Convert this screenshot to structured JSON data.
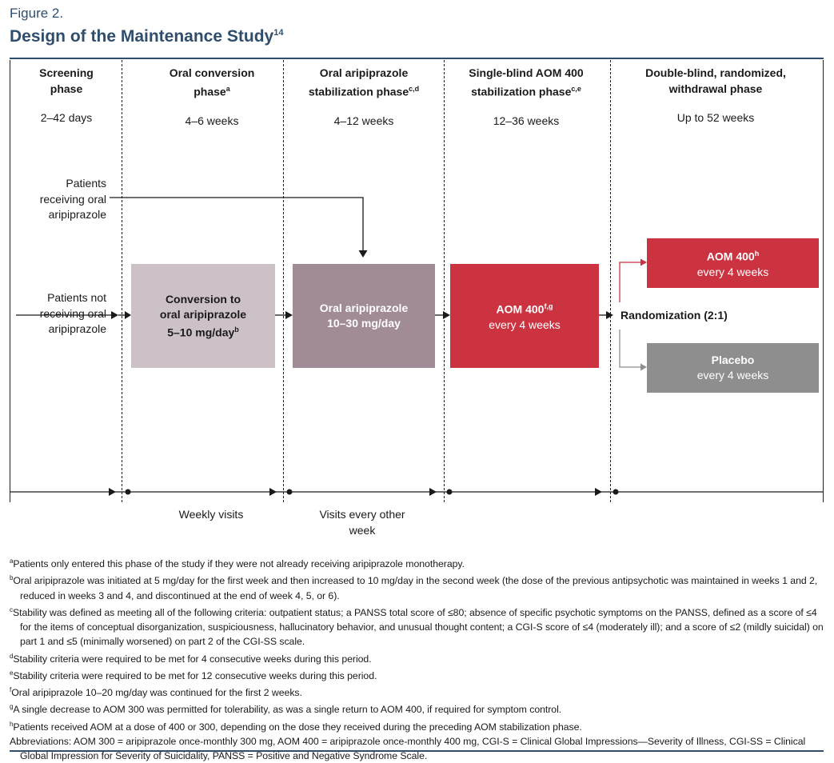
{
  "figure": {
    "label": "Figure 2.",
    "title": "Design of the Maintenance Study",
    "title_ref": "14"
  },
  "phases": [
    {
      "title": "Screening phase",
      "sup": "",
      "duration": "2–42 days"
    },
    {
      "title": "Oral conversion phase",
      "sup": "a",
      "duration": "4–6 weeks"
    },
    {
      "title": "Oral aripiprazole stabilization phase",
      "sup": "c,d",
      "duration": "4–12 weeks"
    },
    {
      "title": "Single-blind AOM 400 stabilization phase",
      "sup": "c,e",
      "duration": "12–36 weeks"
    },
    {
      "title": "Double-blind, randomized, withdrawal phase",
      "sup": "",
      "duration": "Up to 52 weeks"
    }
  ],
  "patients": {
    "receiving": "Patients receiving oral aripiprazole",
    "not_receiving": "Patients not receiving oral aripiprazole"
  },
  "boxes": {
    "conversion": {
      "line1": "Conversion to",
      "line2": "oral aripiprazole",
      "line3": "5–10 mg/day",
      "sup": "b"
    },
    "oral_stab": {
      "line1": "Oral aripiprazole",
      "line2": "10–30 mg/day"
    },
    "aom_stab": {
      "line1": "AOM 400",
      "sup": "f,g",
      "line2": "every 4 weeks"
    },
    "aom_rand": {
      "line1": "AOM 400",
      "sup": "h",
      "line2": "every 4 weeks"
    },
    "placebo": {
      "line1": "Placebo",
      "line2": "every 4 weeks"
    }
  },
  "randomization": "Randomization (2:1)",
  "visits": {
    "weekly": "Weekly visits",
    "other": "Visits every other week"
  },
  "footnotes": [
    {
      "mark": "a",
      "text": "Patients only entered this phase of the study if they were not already receiving aripiprazole monotherapy."
    },
    {
      "mark": "b",
      "text": "Oral aripiprazole was initiated at 5 mg/day for the first week and then increased to 10 mg/day in the second week (the dose of the previous antipsychotic was maintained in weeks 1 and 2, reduced in weeks 3 and 4, and discontinued at the end of week 4, 5, or 6)."
    },
    {
      "mark": "c",
      "text": "Stability was defined as meeting all of the following criteria: outpatient status; a PANSS total score of ≤80; absence of specific psychotic symptoms on the PANSS, defined as a score of ≤4 for the items of conceptual disorganization, suspiciousness, hallucinatory behavior, and unusual thought content; a CGI-S score of ≤4 (moderately ill); and a score of ≤2 (mildly suicidal) on part 1 and ≤5 (minimally worsened) on part 2 of the CGI-SS scale."
    },
    {
      "mark": "d",
      "text": "Stability criteria were required to be met for 4 consecutive weeks during this period."
    },
    {
      "mark": "e",
      "text": "Stability criteria were required to be met for 12 consecutive weeks during this period."
    },
    {
      "mark": "f",
      "text": "Oral aripiprazole 10–20 mg/day was continued for the first 2 weeks."
    },
    {
      "mark": "g",
      "text": "A single decrease to AOM 300 was permitted for tolerability, as was a single return to AOM 400, if required for symptom control."
    },
    {
      "mark": "h",
      "text": "Patients received AOM at a dose of 400 or 300, depending on the dose they received during the preceding AOM stabilization phase."
    }
  ],
  "abbreviations": "Abbreviations: AOM 300 = aripiprazole once-monthly 300 mg, AOM 400 = aripiprazole once-monthly 400 mg, CGI-S = Clinical Global Impressions—Severity of Illness, CGI-SS = Clinical Global Impression for Severity of Suicidality, PANSS = Positive and Negative Syndrome Scale."
}
